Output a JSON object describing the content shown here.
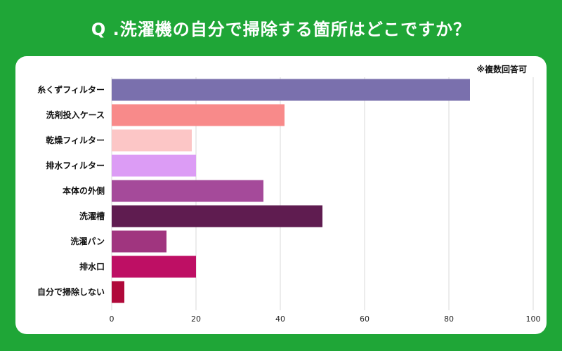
{
  "title": "Q .洗濯機の自分で掃除する箇所はどこですか？",
  "note": "※複数回答可",
  "chart_data": {
    "type": "bar",
    "orientation": "horizontal",
    "title": "Q .洗濯機の自分で掃除する箇所はどこですか？",
    "categories": [
      "糸くずフィルター",
      "洗剤投入ケース",
      "乾燥フィルター",
      "排水フィルター",
      "本体の外側",
      "洗濯槽",
      "洗濯パン",
      "排水口",
      "自分で掃除しない"
    ],
    "values": [
      85,
      41,
      19,
      20,
      36,
      50,
      13,
      20,
      3
    ],
    "colors": [
      "#7a70ad",
      "#f88a8a",
      "#fcc6c6",
      "#dc9cf5",
      "#a54a9a",
      "#5f1c50",
      "#a0357f",
      "#be0f64",
      "#b0093a"
    ],
    "xlim": [
      0,
      100
    ],
    "xticks": [
      0,
      20,
      40,
      60,
      80,
      100
    ],
    "grid": true,
    "xlabel": "",
    "ylabel": "",
    "legend": "none"
  }
}
